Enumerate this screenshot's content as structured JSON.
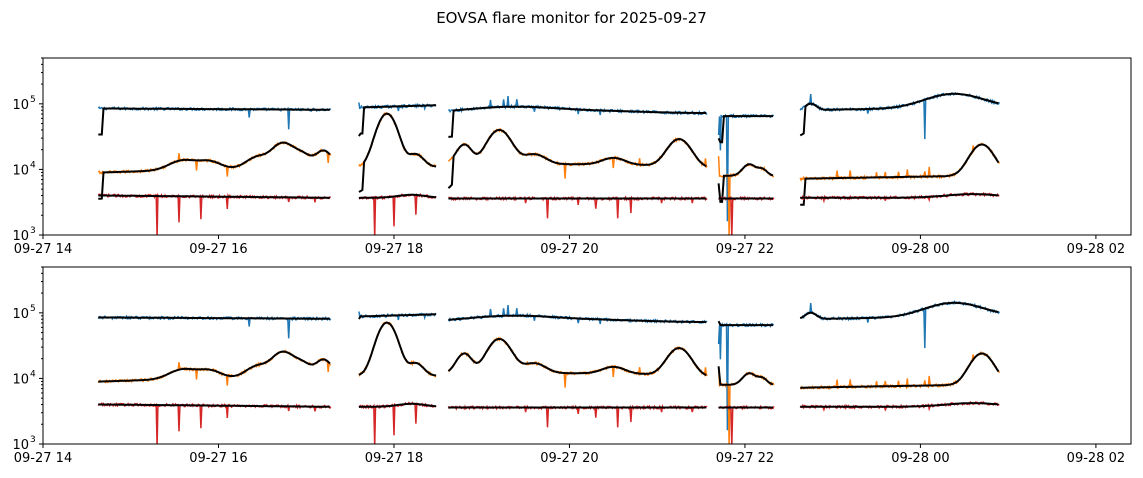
{
  "figure": {
    "suptitle": "EOVSA flare monitor for 2025-09-27"
  },
  "colors": {
    "blue": "#1f77b4",
    "orange": "#ff7f0e",
    "red": "#d62728",
    "fit": "#000000"
  },
  "chart_data": [
    {
      "type": "line",
      "panel": "top",
      "yscale": "log",
      "ylim": [
        1000,
        500000
      ],
      "xlim_hours": [
        14.0,
        26.4
      ],
      "grid": false,
      "x_ticks": [
        14,
        16,
        18,
        20,
        22,
        24,
        26
      ],
      "x_tick_labels": [
        "09-27 14",
        "09-27 16",
        "09-27 18",
        "09-27 20",
        "09-27 22",
        "09-28 00",
        "09-28 02"
      ],
      "y_ticks": [
        1000,
        10000,
        100000
      ],
      "y_tick_labels": [
        "10",
        "10",
        "10"
      ],
      "y_tick_exponents": [
        "3",
        "4",
        "5"
      ],
      "segments": [
        [
          14.63,
          17.28
        ],
        [
          17.6,
          18.48
        ],
        [
          18.62,
          21.57
        ],
        [
          21.7,
          22.33
        ],
        [
          22.63,
          24.9
        ]
      ],
      "series": [
        {
          "color": "blue",
          "smoothed": false,
          "approx_level": 85000
        },
        {
          "color": "orange",
          "smoothed": false,
          "approx_level": 12000
        },
        {
          "color": "red",
          "smoothed": false,
          "approx_level": 3800
        },
        {
          "color": "fit",
          "smoothed": true
        }
      ]
    },
    {
      "type": "line",
      "panel": "bottom",
      "yscale": "log",
      "ylim": [
        1000,
        500000
      ],
      "xlim_hours": [
        14.0,
        26.4
      ],
      "grid": false,
      "x_ticks": [
        14,
        16,
        18,
        20,
        22,
        24,
        26
      ],
      "x_tick_labels": [
        "09-27 14",
        "09-27 16",
        "09-27 18",
        "09-27 20",
        "09-27 22",
        "09-28 00",
        "09-28 02"
      ],
      "y_ticks": [
        1000,
        10000,
        100000
      ],
      "y_tick_labels": [
        "10",
        "10",
        "10"
      ],
      "y_tick_exponents": [
        "3",
        "4",
        "5"
      ],
      "segments": [
        [
          14.63,
          17.28
        ],
        [
          17.6,
          18.48
        ],
        [
          18.62,
          21.57
        ],
        [
          21.7,
          22.33
        ],
        [
          22.63,
          24.9
        ]
      ],
      "series": [
        {
          "color": "blue",
          "smoothed": false,
          "approx_level": 85000
        },
        {
          "color": "orange",
          "smoothed": false,
          "approx_level": 12000
        },
        {
          "color": "red",
          "smoothed": false,
          "approx_level": 3800
        },
        {
          "color": "fit",
          "smoothed": true
        }
      ]
    }
  ]
}
